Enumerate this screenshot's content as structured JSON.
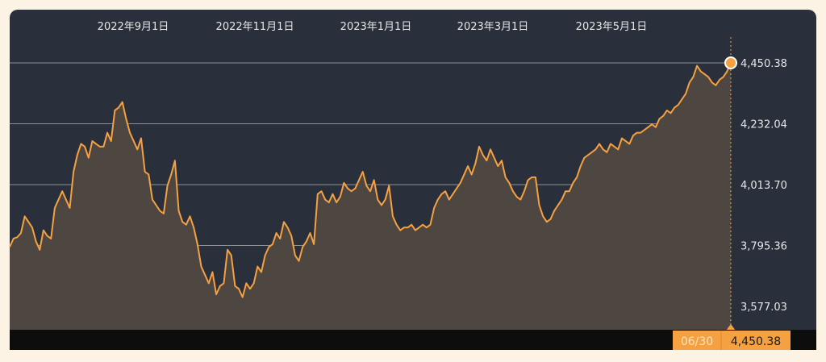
{
  "chart_data": {
    "type": "area",
    "x_tick_labels": [
      "2022年9月1日",
      "2022年11月1日",
      "2023年1月1日",
      "2023年3月1日",
      "2023年5月1日"
    ],
    "y_tick_labels": [
      "4,450.38",
      "4,232.04",
      "4,013.70",
      "3,795.36",
      "3,577.03"
    ],
    "y_ticks": [
      4450.38,
      4232.04,
      4013.7,
      3795.36,
      3577.03
    ],
    "x_range": [
      "2022-07-01",
      "2023-06-30"
    ],
    "grid": true,
    "colors": {
      "line": "#f5a142",
      "area_fill": "#4e4641",
      "background": "#29303b",
      "gridline": "#8a8f96"
    },
    "series": [
      {
        "values": [
          3790,
          3820,
          3825,
          3840,
          3900,
          3880,
          3860,
          3810,
          3780,
          3850,
          3830,
          3820,
          3930,
          3960,
          3990,
          3960,
          3930,
          4060,
          4120,
          4160,
          4150,
          4110,
          4170,
          4160,
          4150,
          4150,
          4200,
          4170,
          4280,
          4290,
          4310,
          4250,
          4200,
          4170,
          4140,
          4180,
          4060,
          4050,
          3960,
          3940,
          3920,
          3910,
          4010,
          4050,
          4100,
          3920,
          3880,
          3870,
          3900,
          3860,
          3800,
          3720,
          3690,
          3660,
          3700,
          3620,
          3650,
          3660,
          3780,
          3760,
          3650,
          3640,
          3610,
          3660,
          3640,
          3660,
          3720,
          3700,
          3760,
          3790,
          3800,
          3840,
          3820,
          3880,
          3860,
          3830,
          3760,
          3740,
          3790,
          3810,
          3840,
          3800,
          3980,
          3990,
          3960,
          3950,
          3980,
          3950,
          3970,
          4020,
          4000,
          3990,
          4000,
          4030,
          4060,
          4010,
          3990,
          4030,
          3960,
          3940,
          3960,
          4010,
          3900,
          3870,
          3850,
          3860,
          3860,
          3870,
          3850,
          3860,
          3870,
          3860,
          3870,
          3930,
          3960,
          3980,
          3990,
          3960,
          3980,
          4000,
          4020,
          4050,
          4080,
          4050,
          4090,
          4150,
          4120,
          4100,
          4140,
          4110,
          4080,
          4100,
          4040,
          4020,
          3990,
          3970,
          3960,
          3990,
          4030,
          4040,
          4040,
          3940,
          3900,
          3880,
          3890,
          3920,
          3940,
          3960,
          3990,
          3990,
          4020,
          4040,
          4080,
          4110,
          4120,
          4130,
          4140,
          4160,
          4140,
          4130,
          4160,
          4150,
          4140,
          4180,
          4170,
          4160,
          4190,
          4200,
          4200,
          4210,
          4220,
          4230,
          4220,
          4250,
          4260,
          4280,
          4270,
          4290,
          4300,
          4320,
          4340,
          4380,
          4400,
          4440,
          4420,
          4410,
          4400,
          4380,
          4370,
          4390,
          4400,
          4420,
          4450.38
        ]
      }
    ]
  },
  "tooltip": {
    "date": "06/30",
    "value": "4,450.38"
  }
}
